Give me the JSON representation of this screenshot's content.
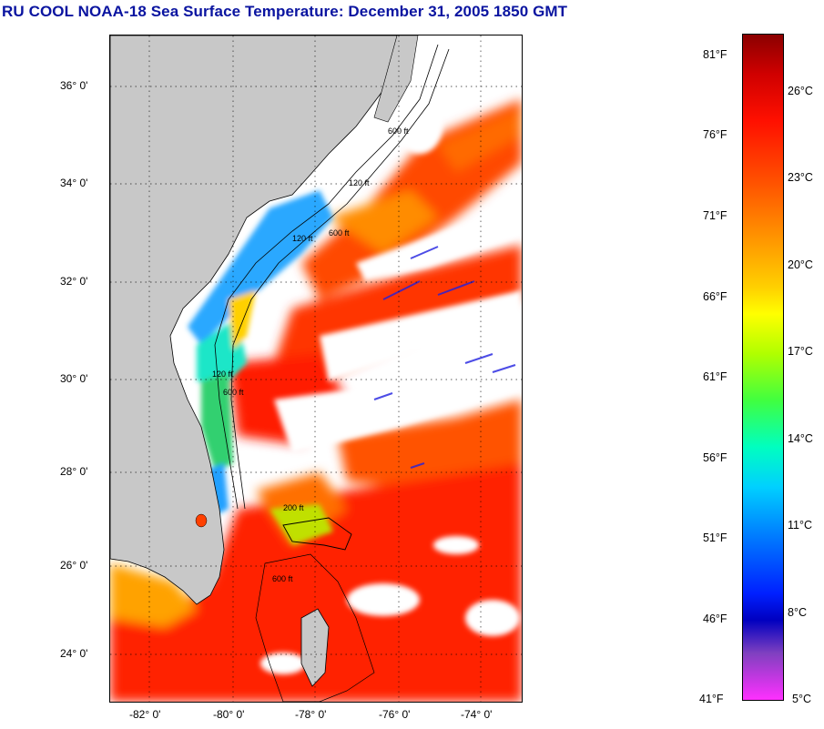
{
  "title": "RU COOL  NOAA-18  Sea Surface Temperature:  December 31, 2005 1850 GMT",
  "map": {
    "lat_labels": [
      "36° 0'",
      "34° 0'",
      "32° 0'",
      "30° 0'",
      "28° 0'",
      "26° 0'",
      "24° 0'"
    ],
    "lon_labels": [
      "-82° 0'",
      "-80° 0'",
      "-78° 0'",
      "-76° 0'",
      "-74° 0'"
    ],
    "isobath_labels": [
      "120 ft",
      "600 ft",
      "120 ft",
      "600 ft",
      "120 ft",
      "600 ft",
      "200 ft",
      "600 ft"
    ],
    "colors": {
      "land": "#c8c8c8",
      "cloud": "#ffffff",
      "warm": "#ff1e00",
      "cool": "#1e90ff"
    }
  },
  "colorbar": {
    "fahrenheit": [
      "81°F",
      "76°F",
      "71°F",
      "66°F",
      "61°F",
      "56°F",
      "51°F",
      "46°F",
      "41°F"
    ],
    "celsius": [
      "26°C",
      "23°C",
      "20°C",
      "17°C",
      "14°C",
      "11°C",
      "8°C",
      "5°C"
    ]
  }
}
